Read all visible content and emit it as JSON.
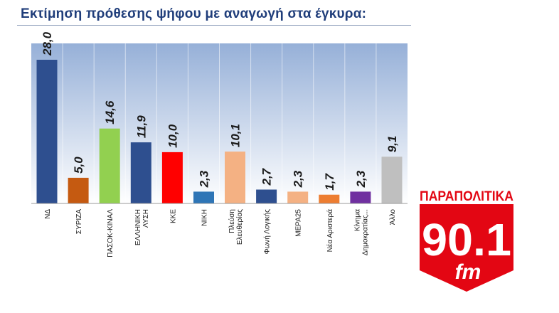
{
  "title": "Εκτίμηση πρόθεσης ψήφου με αναγωγή στα έγκυρα:",
  "chart_data": {
    "type": "bar",
    "title": "",
    "xlabel": "",
    "ylabel": "",
    "ylim": [
      0,
      30
    ],
    "grid": false,
    "categories": [
      "ΝΔ",
      "ΣΥΡΙΖΑ",
      "ΠΑΣΟΚ-ΚΙΝΑΛ",
      "ΕΛΛΗΝΙΚΗ ΛΥΣΗ",
      "ΚΚΕ",
      "ΝΙΚΗ",
      "Πλεύση Ελευθερίας",
      "Φωνή Λογικής",
      "ΜΕΡΑ25",
      "Νέα Αριστερά",
      "Κίνημα Δημοκρατίας...",
      "Άλλο"
    ],
    "values": [
      28.0,
      5.0,
      14.6,
      11.9,
      10.0,
      2.3,
      10.1,
      2.7,
      2.3,
      1.7,
      2.3,
      9.1
    ],
    "value_labels": [
      "28,0",
      "5,0",
      "14,6",
      "11,9",
      "10,0",
      "2,3",
      "10,1",
      "2,7",
      "2,3",
      "1,7",
      "2,3",
      "9,1"
    ],
    "colors": [
      "#2e4f8f",
      "#c55a11",
      "#92d050",
      "#2e4f8f",
      "#ff0000",
      "#2e75b6",
      "#f4b183",
      "#2e4f8f",
      "#f4b183",
      "#ed7d31",
      "#7030a0",
      "#bfbfbf"
    ]
  },
  "logo": {
    "brand": "ΠΑΡΑΠΟΛΙΤΙΚΑ",
    "frequency": "90.1",
    "band": "fm"
  }
}
